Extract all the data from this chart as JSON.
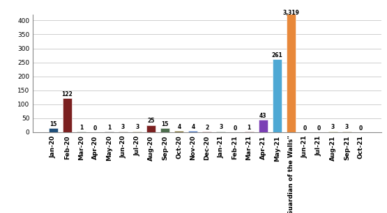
{
  "categories": [
    "Jan-20",
    "Feb-20",
    "Mar-20",
    "Apr-20",
    "May-20",
    "Jun-20",
    "Jul-20",
    "Aug-20",
    "Sep-20",
    "Oct-20",
    "Nov-20",
    "Dec-20",
    "Jan-21",
    "Feb-21",
    "Mar-21",
    "Apr-21",
    "May-21",
    "\"Guardian of the Walls\"",
    "Jun-21",
    "Jul-21",
    "Aug-21",
    "Sep-21",
    "Oct-21"
  ],
  "values": [
    15,
    122,
    1,
    0,
    1,
    3,
    3,
    25,
    15,
    4,
    4,
    2,
    3,
    0,
    1,
    43,
    261,
    3319,
    0,
    0,
    3,
    3,
    0
  ],
  "bar_colors": [
    "#1F4E79",
    "#7B2020",
    "#4D6D4D",
    "#7B6B2A",
    "#4D4D4D",
    "#8B7355",
    "#8B6914",
    "#7B2020",
    "#4D6D4D",
    "#7B6B2A",
    "#4472C4",
    "#8B2020",
    "#4D6D4D",
    "#4D4D4D",
    "#7B2020",
    "#7B3FB5",
    "#4EA8D4",
    "#E8883A",
    "#4472C4",
    "#4472C4",
    "#7F7F00",
    "#8B6914",
    "#4472C4"
  ],
  "ylim": [
    0,
    420
  ],
  "yticks": [
    0,
    50,
    100,
    150,
    200,
    250,
    300,
    350,
    400
  ],
  "background_color": "#FFFFFF",
  "grid_color": "#BBBBBB",
  "label_fontsize": 5.5,
  "tick_fontsize": 6.5
}
